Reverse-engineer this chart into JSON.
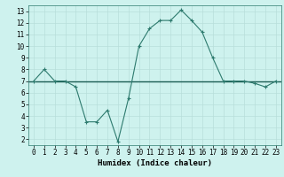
{
  "x": [
    0,
    1,
    2,
    3,
    4,
    5,
    6,
    7,
    8,
    9,
    10,
    11,
    12,
    13,
    14,
    15,
    16,
    17,
    18,
    19,
    20,
    21,
    22,
    23
  ],
  "y": [
    7,
    8,
    7,
    7,
    6.5,
    3.5,
    3.5,
    4.5,
    1.8,
    5.5,
    10,
    11.5,
    12.2,
    12.2,
    13.1,
    12.2,
    11.2,
    9,
    7,
    7,
    7,
    6.8,
    6.5,
    7
  ],
  "hline_y": 7,
  "line_color": "#2d7a6e",
  "hline_color": "#1a5c52",
  "bg_color": "#cef2ee",
  "grid_color": "#b8deda",
  "xlabel": "Humidex (Indice chaleur)",
  "xlim": [
    -0.5,
    23.5
  ],
  "ylim": [
    1.5,
    13.5
  ],
  "yticks": [
    2,
    3,
    4,
    5,
    6,
    7,
    8,
    9,
    10,
    11,
    12,
    13
  ],
  "xticks": [
    0,
    1,
    2,
    3,
    4,
    5,
    6,
    7,
    8,
    9,
    10,
    11,
    12,
    13,
    14,
    15,
    16,
    17,
    18,
    19,
    20,
    21,
    22,
    23
  ],
  "marker": "+",
  "marker_size": 3.5,
  "line_width": 0.8,
  "font_size": 5.5,
  "xlabel_font_size": 6.5
}
